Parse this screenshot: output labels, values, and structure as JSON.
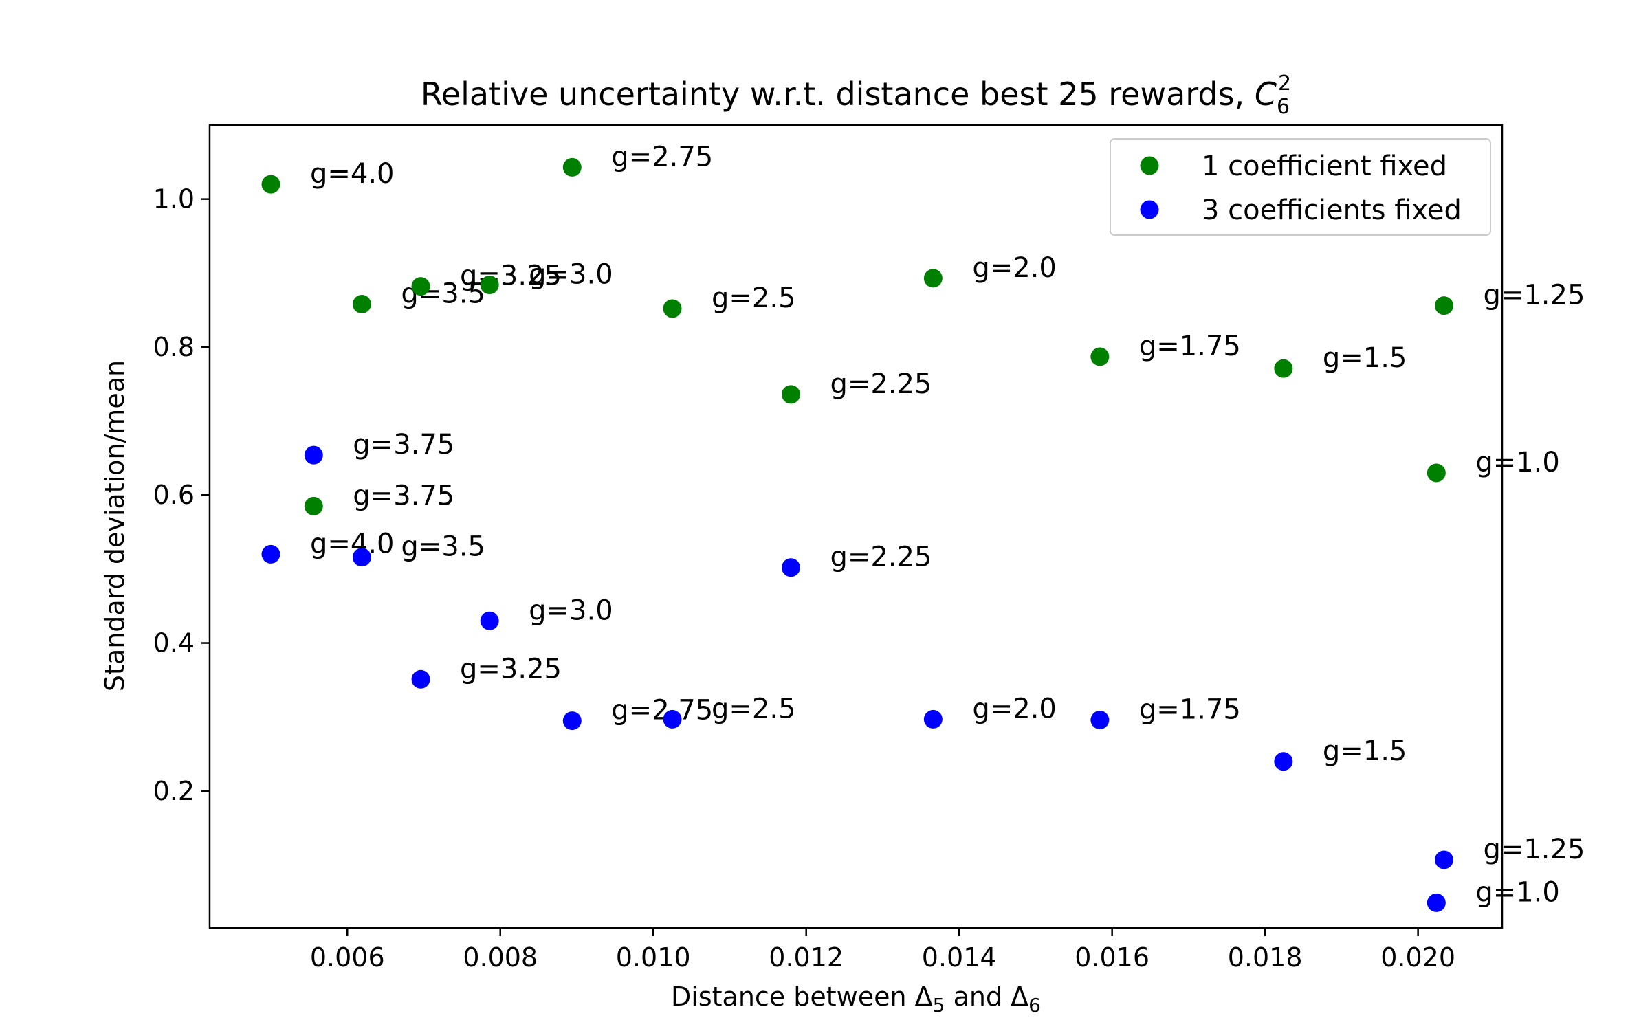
{
  "chart_data": {
    "type": "scatter",
    "title": "Relative uncertainty w.r.t. distance best 25 rewards, ",
    "title_math": {
      "base": "C",
      "sub": "6",
      "sup": "2"
    },
    "xlabel": {
      "pre": "Distance between ",
      "d1": "Δ",
      "s1": "5",
      "mid": " and ",
      "d2": "Δ",
      "s2": "6"
    },
    "ylabel": "Standard deviation/mean",
    "xlim": [
      0.0042,
      0.0211
    ],
    "ylim": [
      0.015,
      1.1
    ],
    "xticks": [
      0.006,
      0.008,
      0.01,
      0.012,
      0.014,
      0.016,
      0.018,
      0.02
    ],
    "xtick_labels": [
      "0.006",
      "0.008",
      "0.010",
      "0.012",
      "0.014",
      "0.016",
      "0.018",
      "0.020"
    ],
    "yticks": [
      0.2,
      0.4,
      0.6,
      0.8,
      1.0
    ],
    "ytick_labels": [
      "0.2",
      "0.4",
      "0.6",
      "0.8",
      "1.0"
    ],
    "legend_position": "top-right",
    "grid": false,
    "series": [
      {
        "name": "1 coefficient fixed",
        "color": "#008000",
        "points": [
          {
            "x": 0.005,
            "y": 1.02,
            "label": "g=4.0"
          },
          {
            "x": 0.00556,
            "y": 0.585,
            "label": "g=3.75"
          },
          {
            "x": 0.00619,
            "y": 0.858,
            "label": "g=3.5"
          },
          {
            "x": 0.00696,
            "y": 0.882,
            "label": "g=3.25"
          },
          {
            "x": 0.00786,
            "y": 0.884,
            "label": "g=3.0"
          },
          {
            "x": 0.00894,
            "y": 1.043,
            "label": "g=2.75"
          },
          {
            "x": 0.01025,
            "y": 0.852,
            "label": "g=2.5"
          },
          {
            "x": 0.0118,
            "y": 0.736,
            "label": "g=2.25"
          },
          {
            "x": 0.01366,
            "y": 0.893,
            "label": "g=2.0"
          },
          {
            "x": 0.01584,
            "y": 0.787,
            "label": "g=1.75"
          },
          {
            "x": 0.01824,
            "y": 0.771,
            "label": "g=1.5"
          },
          {
            "x": 0.02034,
            "y": 0.856,
            "label": "g=1.25"
          },
          {
            "x": 0.02024,
            "y": 0.63,
            "label": "g=1.0"
          }
        ]
      },
      {
        "name": "3 coefficients fixed",
        "color": "#0000ff",
        "points": [
          {
            "x": 0.005,
            "y": 0.52,
            "label": "g=4.0"
          },
          {
            "x": 0.00556,
            "y": 0.654,
            "label": "g=3.75"
          },
          {
            "x": 0.00619,
            "y": 0.516,
            "label": "g=3.5"
          },
          {
            "x": 0.00696,
            "y": 0.351,
            "label": "g=3.25"
          },
          {
            "x": 0.00786,
            "y": 0.43,
            "label": "g=3.0"
          },
          {
            "x": 0.00894,
            "y": 0.295,
            "label": "g=2.75"
          },
          {
            "x": 0.01025,
            "y": 0.297,
            "label": "g=2.5"
          },
          {
            "x": 0.0118,
            "y": 0.502,
            "label": "g=2.25"
          },
          {
            "x": 0.01366,
            "y": 0.297,
            "label": "g=2.0"
          },
          {
            "x": 0.01584,
            "y": 0.296,
            "label": "g=1.75"
          },
          {
            "x": 0.01824,
            "y": 0.24,
            "label": "g=1.5"
          },
          {
            "x": 0.02034,
            "y": 0.107,
            "label": "g=1.25"
          },
          {
            "x": 0.02024,
            "y": 0.049,
            "label": "g=1.0"
          }
        ]
      }
    ]
  }
}
